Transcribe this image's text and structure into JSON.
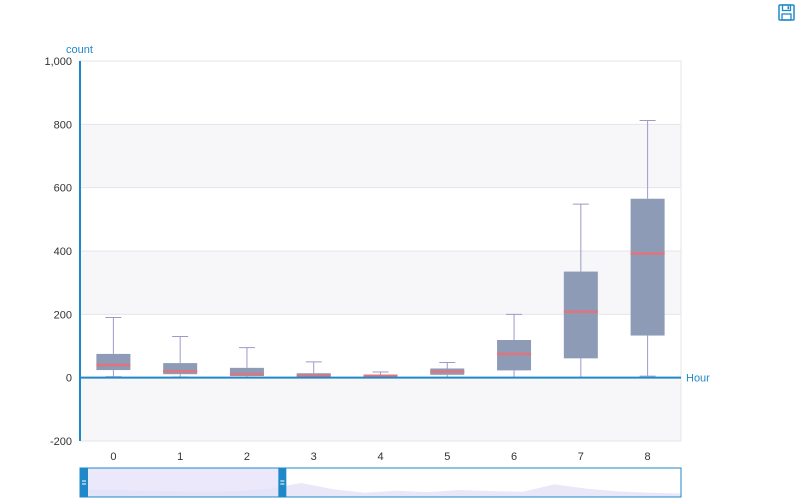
{
  "toolbar": {
    "save_icon": "save-icon"
  },
  "colors": {
    "axis": "#1f88c9",
    "box_fill": "#8e9bb6",
    "whisker": "#9b9bc8",
    "median": "#e0737b",
    "band": "#f7f7f9",
    "grid": "#e6e6ea",
    "zoom_area": "#e4e1f6",
    "zoom_selected": "#ebe8fb",
    "zoom_border": "#1f88c9"
  },
  "chart_data": {
    "type": "boxplot",
    "xlabel": "Hour",
    "ylabel": "count",
    "ylim": [
      -200,
      1000
    ],
    "yticks": [
      -200,
      0,
      200,
      400,
      600,
      800,
      1000
    ],
    "ytick_labels": [
      "-200",
      "0",
      "200",
      "400",
      "600",
      "800",
      "1,000"
    ],
    "categories": [
      "0",
      "1",
      "2",
      "3",
      "4",
      "5",
      "6",
      "7",
      "8"
    ],
    "boxes": [
      {
        "category": "0",
        "min": 3,
        "q1": 24,
        "median": 40,
        "q3": 75,
        "max": 190
      },
      {
        "category": "1",
        "min": 2,
        "q1": 11,
        "median": 20,
        "q3": 46,
        "max": 130
      },
      {
        "category": "2",
        "min": 1,
        "q1": 5,
        "median": 11,
        "q3": 31,
        "max": 95
      },
      {
        "category": "3",
        "min": 1,
        "q1": 3,
        "median": 6,
        "q3": 14,
        "max": 50
      },
      {
        "category": "4",
        "min": 1,
        "q1": 3,
        "median": 6,
        "q3": 9,
        "max": 18
      },
      {
        "category": "5",
        "min": 1,
        "q1": 9,
        "median": 19,
        "q3": 29,
        "max": 48
      },
      {
        "category": "6",
        "min": 1,
        "q1": 23,
        "median": 75,
        "q3": 119,
        "max": 200
      },
      {
        "category": "7",
        "min": 1,
        "q1": 61,
        "median": 208,
        "q3": 335,
        "max": 548
      },
      {
        "category": "8",
        "min": 5,
        "q1": 133,
        "median": 392,
        "q3": 565,
        "max": 812
      }
    ],
    "grid": true,
    "zoom_slider": {
      "start_percent": 0,
      "end_percent": 100,
      "selected_end_percent": 33
    },
    "zoom_shape": [
      0.55,
      0.5,
      0.45,
      0.4,
      0.38,
      0.42,
      0.6,
      1.0,
      0.55,
      0.3,
      0.45,
      0.35,
      0.5,
      0.42,
      0.38,
      0.9,
      0.6,
      0.4,
      0.3,
      0.25
    ]
  }
}
